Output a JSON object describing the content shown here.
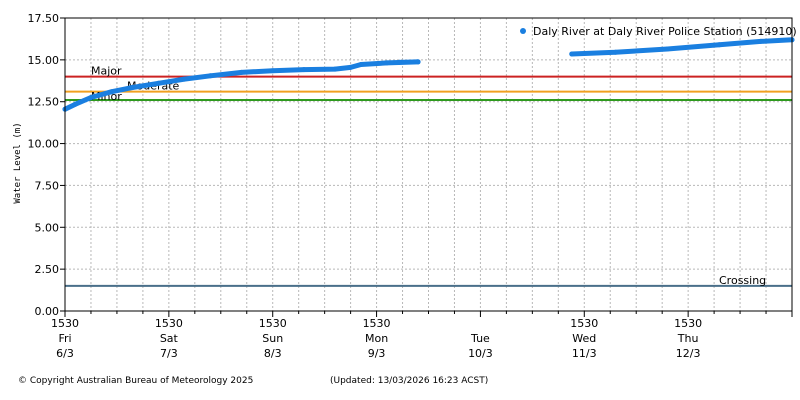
{
  "chart_data": {
    "type": "line",
    "title": "",
    "xlabel": "",
    "ylabel": "Water Level (m)",
    "ylim": [
      0,
      17.5
    ],
    "xlim": [
      0,
      7
    ],
    "x_unit": "days since Fri 6/3 1530",
    "yticks": [
      "0.00",
      "2.50",
      "5.00",
      "7.50",
      "10.00",
      "12.50",
      "15.00",
      "17.50"
    ],
    "xticks": [
      {
        "time": "1530",
        "day": "Fri",
        "date": "6/3"
      },
      {
        "time": "1530",
        "day": "Sat",
        "date": "7/3"
      },
      {
        "time": "1530",
        "day": "Sun",
        "date": "8/3"
      },
      {
        "time": "1530",
        "day": "Mon",
        "date": "9/3"
      },
      {
        "time": "",
        "day": "Tue",
        "date": "10/3"
      },
      {
        "time": "1530",
        "day": "Wed",
        "date": "11/3"
      },
      {
        "time": "1530",
        "day": "Thu",
        "date": "12/3"
      }
    ],
    "legend": {
      "label": "Daly River  at Daly River Police Station (514910)",
      "position": "top-right"
    },
    "series": [
      {
        "name": "Daly River  at Daly River Police Station (514910)",
        "color": "#1a7fe0",
        "segments": [
          [
            {
              "x": 0.0,
              "y": 12.05
            },
            {
              "x": 0.1,
              "y": 12.35
            },
            {
              "x": 0.25,
              "y": 12.75
            },
            {
              "x": 0.45,
              "y": 13.1
            },
            {
              "x": 0.65,
              "y": 13.35
            },
            {
              "x": 0.9,
              "y": 13.6
            },
            {
              "x": 1.15,
              "y": 13.85
            },
            {
              "x": 1.4,
              "y": 14.05
            },
            {
              "x": 1.7,
              "y": 14.25
            },
            {
              "x": 2.0,
              "y": 14.35
            },
            {
              "x": 2.3,
              "y": 14.42
            },
            {
              "x": 2.6,
              "y": 14.45
            },
            {
              "x": 2.75,
              "y": 14.55
            },
            {
              "x": 2.85,
              "y": 14.72
            },
            {
              "x": 3.1,
              "y": 14.82
            },
            {
              "x": 3.4,
              "y": 14.88
            },
            {
              "x": 3.22,
              "y": 14.85
            },
            {
              "x": 3.22,
              "y": 14.85
            }
          ],
          [
            {
              "x": 4.88,
              "y": 15.35
            },
            {
              "x": 5.3,
              "y": 15.45
            },
            {
              "x": 5.8,
              "y": 15.65
            },
            {
              "x": 6.3,
              "y": 15.9
            },
            {
              "x": 6.7,
              "y": 16.1
            },
            {
              "x": 7.0,
              "y": 16.2
            }
          ]
        ]
      }
    ],
    "thresholds": [
      {
        "name": "Major",
        "label": "Major",
        "value": 14.0,
        "color": "#cc2222"
      },
      {
        "name": "Moderate",
        "label": "Moderate",
        "value": 13.1,
        "color": "#f0a020"
      },
      {
        "name": "Minor",
        "label": "Minor",
        "value": 12.6,
        "color": "#2e9a1e"
      },
      {
        "name": "Crossing",
        "label": "Crossing",
        "value": 1.5,
        "color": "#4a6f8a"
      }
    ],
    "grid": true
  },
  "footer": {
    "copyright": "© Copyright Australian Bureau of Meteorology 2025",
    "updated": "(Updated: 13/03/2026 16:23 ACST)"
  }
}
